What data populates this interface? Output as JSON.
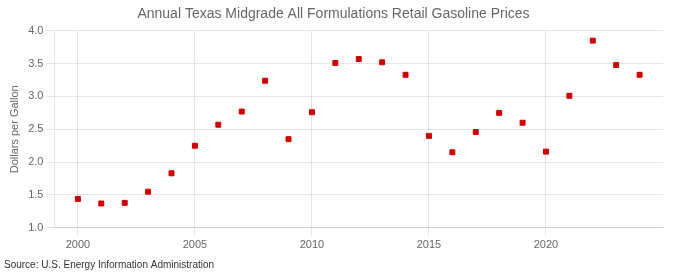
{
  "chart_data": {
    "type": "scatter",
    "title": "Annual Texas Midgrade All Formulations Retail Gasoline Prices",
    "ylabel": "Dollars per Gallon",
    "source": "Source: U.S. Energy Information Administration",
    "x": [
      2000,
      2001,
      2002,
      2003,
      2004,
      2005,
      2006,
      2007,
      2008,
      2009,
      2010,
      2011,
      2012,
      2013,
      2014,
      2015,
      2016,
      2017,
      2018,
      2019,
      2020,
      2021,
      2022,
      2023,
      2024
    ],
    "values": [
      1.44,
      1.37,
      1.38,
      1.55,
      1.83,
      2.25,
      2.57,
      2.77,
      3.24,
      2.35,
      2.76,
      3.51,
      3.57,
      3.52,
      3.33,
      2.4,
      2.15,
      2.46,
      2.75,
      2.6,
      2.16,
      3.01,
      3.85,
      3.48,
      3.33
    ],
    "color": "#cc0000",
    "marker": "square",
    "xlim": [
      1999,
      2025
    ],
    "xticks": [
      2000,
      2005,
      2010,
      2015,
      2020
    ],
    "ylim": [
      1.0,
      4.0
    ],
    "yticks": [
      {
        "value": 1.0,
        "label": "1.0"
      },
      1.5,
      {
        "value": 2.0,
        "label": "2.0"
      },
      2.5,
      {
        "value": 3.0,
        "label": "3.0"
      },
      3.5,
      {
        "value": 4.0,
        "label": "4.0"
      }
    ],
    "grid": true,
    "legend": false
  }
}
